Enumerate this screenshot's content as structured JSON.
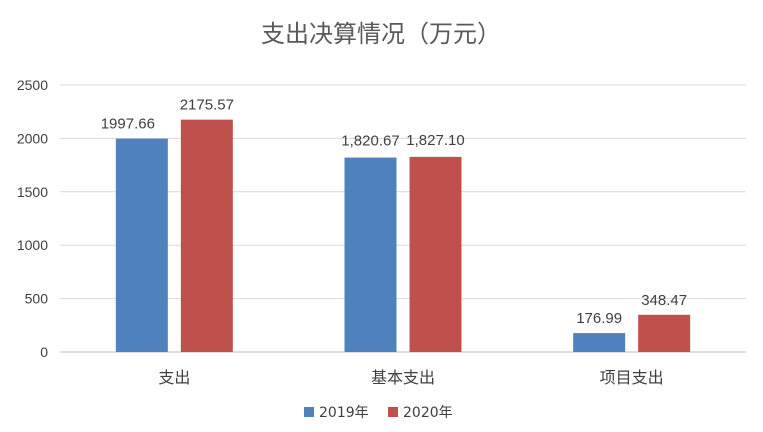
{
  "chart_data": {
    "type": "bar",
    "title": "支出决算情况（万元）",
    "categories": [
      "支出",
      "基本支出",
      "项目支出"
    ],
    "series": [
      {
        "name": "2019年",
        "values": [
          1997.66,
          1820.67,
          176.99
        ],
        "labels": [
          "1997.66",
          "1,820.67",
          "176.99"
        ],
        "color": "#4f81bd"
      },
      {
        "name": "2020年",
        "values": [
          2175.57,
          1827.1,
          348.47
        ],
        "labels": [
          "2175.57",
          "1,827.10",
          "348.47"
        ],
        "color": "#c0504d"
      }
    ],
    "y_ticks": [
      "0",
      "500",
      "1000",
      "1500",
      "2000",
      "2500"
    ],
    "ylim": [
      0,
      2500
    ],
    "grid": true,
    "legend": "bottom"
  }
}
